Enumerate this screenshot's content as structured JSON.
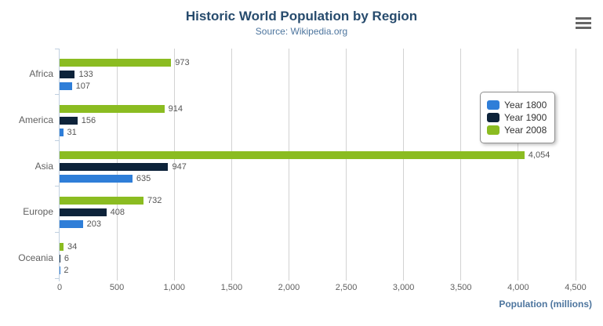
{
  "header": {
    "title": "Historic World Population by Region",
    "subtitle": "Source: Wikipedia.org",
    "menu_icon": "hamburger-menu-icon"
  },
  "chart_data": {
    "type": "bar",
    "orientation": "horizontal",
    "title": "Historic World Population by Region",
    "subtitle": "Source: Wikipedia.org",
    "categories": [
      "Africa",
      "America",
      "Asia",
      "Europe",
      "Oceania"
    ],
    "series": [
      {
        "name": "Year 1800",
        "color": "#2f7ed8",
        "values": [
          107,
          31,
          635,
          203,
          2
        ]
      },
      {
        "name": "Year 1900",
        "color": "#0d233a",
        "values": [
          133,
          156,
          947,
          408,
          6
        ]
      },
      {
        "name": "Year 2008",
        "color": "#8bbc21",
        "values": [
          973,
          914,
          4054,
          732,
          34
        ]
      }
    ],
    "xlabel": "Population (millions)",
    "ylabel": "",
    "xlim": [
      0,
      4500
    ],
    "xtick_labels": [
      "0",
      "500",
      "1,000",
      "1,500",
      "2,000",
      "2,500",
      "3,000",
      "3,500",
      "4,000",
      "4,500"
    ],
    "grid": "vertical",
    "legend_position": "right",
    "data_labels": true
  },
  "colors": {
    "title": "#274b6d",
    "subtitle": "#4d759e",
    "axis_title": "#4d759e",
    "gridline": "#d2d2d2",
    "axis_line": "#c0d0e0",
    "tick_label": "#606060",
    "data_label": "#555555",
    "menu_icon": "#666666"
  }
}
